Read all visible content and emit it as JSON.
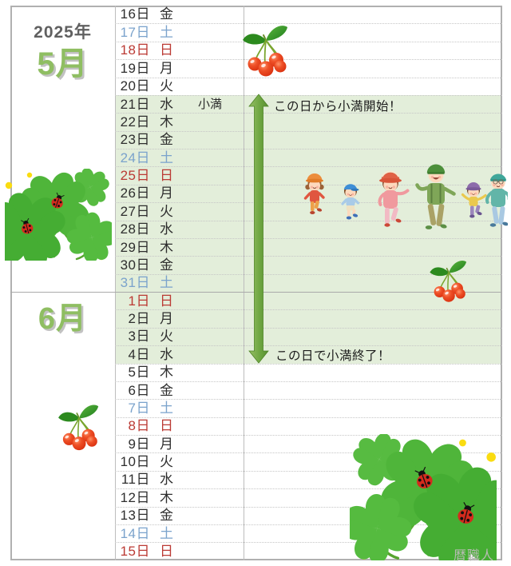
{
  "left_panel": {
    "year": "2025年",
    "month_may": "5月",
    "month_june": "6月"
  },
  "annotations": {
    "start": "この日から小満開始！",
    "end": "この日で小満終了！"
  },
  "watermark": "暦職人",
  "colors": {
    "weekday": "#2e2e2e",
    "sat": "#7ba3cc",
    "sun": "#bb3a34",
    "highlight_bg": "#e3eeda",
    "arrow_green": "#6fa742",
    "month_green": "#8fbe62"
  },
  "decorations": [
    {
      "name": "cherries-top"
    },
    {
      "name": "clover-ladybug-left"
    },
    {
      "name": "walking-family"
    },
    {
      "name": "cherries-right"
    },
    {
      "name": "cherries-left"
    },
    {
      "name": "clover-ladybug-bottom-right"
    }
  ],
  "calendar": {
    "term_label": "小満",
    "rows": [
      {
        "date": "16日",
        "weekday": "金",
        "type": "weekday",
        "highlight": false,
        "note": ""
      },
      {
        "date": "17日",
        "weekday": "土",
        "type": "sat",
        "highlight": false,
        "note": ""
      },
      {
        "date": "18日",
        "weekday": "日",
        "type": "sun",
        "highlight": false,
        "note": ""
      },
      {
        "date": "19日",
        "weekday": "月",
        "type": "weekday",
        "highlight": false,
        "note": ""
      },
      {
        "date": "20日",
        "weekday": "火",
        "type": "weekday",
        "highlight": false,
        "note": ""
      },
      {
        "date": "21日",
        "weekday": "水",
        "type": "weekday",
        "highlight": true,
        "note": "小満"
      },
      {
        "date": "22日",
        "weekday": "木",
        "type": "weekday",
        "highlight": true,
        "note": ""
      },
      {
        "date": "23日",
        "weekday": "金",
        "type": "weekday",
        "highlight": true,
        "note": ""
      },
      {
        "date": "24日",
        "weekday": "土",
        "type": "sat",
        "highlight": true,
        "note": ""
      },
      {
        "date": "25日",
        "weekday": "日",
        "type": "sun",
        "highlight": true,
        "note": ""
      },
      {
        "date": "26日",
        "weekday": "月",
        "type": "weekday",
        "highlight": true,
        "note": ""
      },
      {
        "date": "27日",
        "weekday": "火",
        "type": "weekday",
        "highlight": true,
        "note": ""
      },
      {
        "date": "28日",
        "weekday": "水",
        "type": "weekday",
        "highlight": true,
        "note": ""
      },
      {
        "date": "29日",
        "weekday": "木",
        "type": "weekday",
        "highlight": true,
        "note": ""
      },
      {
        "date": "30日",
        "weekday": "金",
        "type": "weekday",
        "highlight": true,
        "note": ""
      },
      {
        "date": "31日",
        "weekday": "土",
        "type": "sat",
        "highlight": true,
        "note": ""
      },
      {
        "date": "1日",
        "weekday": "日",
        "type": "sun",
        "highlight": true,
        "note": "",
        "solid_top": true
      },
      {
        "date": "2日",
        "weekday": "月",
        "type": "weekday",
        "highlight": true,
        "note": ""
      },
      {
        "date": "3日",
        "weekday": "火",
        "type": "weekday",
        "highlight": true,
        "note": ""
      },
      {
        "date": "4日",
        "weekday": "水",
        "type": "weekday",
        "highlight": true,
        "note": ""
      },
      {
        "date": "5日",
        "weekday": "木",
        "type": "weekday",
        "highlight": false,
        "note": ""
      },
      {
        "date": "6日",
        "weekday": "金",
        "type": "weekday",
        "highlight": false,
        "note": ""
      },
      {
        "date": "7日",
        "weekday": "土",
        "type": "sat",
        "highlight": false,
        "note": ""
      },
      {
        "date": "8日",
        "weekday": "日",
        "type": "sun",
        "highlight": false,
        "note": ""
      },
      {
        "date": "9日",
        "weekday": "月",
        "type": "weekday",
        "highlight": false,
        "note": ""
      },
      {
        "date": "10日",
        "weekday": "火",
        "type": "weekday",
        "highlight": false,
        "note": ""
      },
      {
        "date": "11日",
        "weekday": "水",
        "type": "weekday",
        "highlight": false,
        "note": ""
      },
      {
        "date": "12日",
        "weekday": "木",
        "type": "weekday",
        "highlight": false,
        "note": ""
      },
      {
        "date": "13日",
        "weekday": "金",
        "type": "weekday",
        "highlight": false,
        "note": ""
      },
      {
        "date": "14日",
        "weekday": "土",
        "type": "sat",
        "highlight": false,
        "note": ""
      },
      {
        "date": "15日",
        "weekday": "日",
        "type": "sun",
        "highlight": false,
        "note": ""
      }
    ]
  }
}
